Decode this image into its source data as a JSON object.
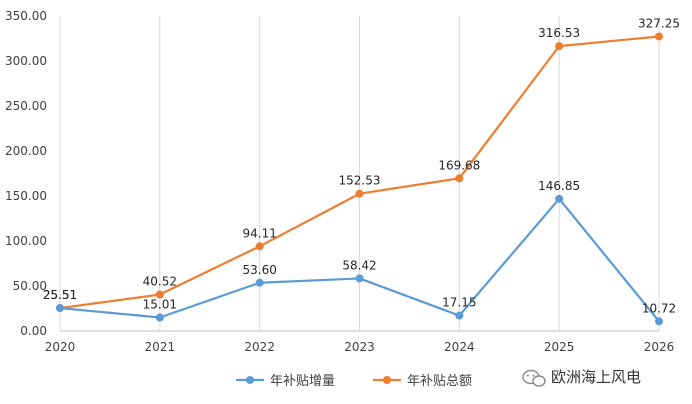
{
  "chart_data": {
    "type": "line",
    "title": "",
    "xlabel": "",
    "ylabel": "",
    "categories": [
      "2020",
      "2021",
      "2022",
      "2023",
      "2024",
      "2025",
      "2026"
    ],
    "ylim": [
      0,
      350
    ],
    "yticks": [
      0,
      50,
      100,
      150,
      200,
      250,
      300,
      350
    ],
    "yticks_labels": [
      "0.00",
      "50.00",
      "100.00",
      "150.00",
      "200.00",
      "250.00",
      "300.00",
      "350.00"
    ],
    "grid": "vertical",
    "legend_position": "bottom",
    "series": [
      {
        "name": "年补贴增量",
        "color": "#5b9bd5",
        "values": [
          25.51,
          15.01,
          53.6,
          58.42,
          17.15,
          146.85,
          10.72
        ],
        "labels": [
          "25.51",
          "15.01",
          "53.60",
          "58.42",
          "17.15",
          "146.85",
          "10.72"
        ]
      },
      {
        "name": "年补贴总额",
        "color": "#ed7d31",
        "values": [
          25.51,
          40.52,
          94.11,
          152.53,
          169.68,
          316.53,
          327.25
        ],
        "labels": [
          "25.51",
          "40.52",
          "94.11",
          "152.53",
          "169.68",
          "316.53",
          "327.25"
        ]
      }
    ]
  },
  "watermark": {
    "text": "欧洲海上风电",
    "icon": "wechat-icon",
    "icon_color": "#888888"
  }
}
